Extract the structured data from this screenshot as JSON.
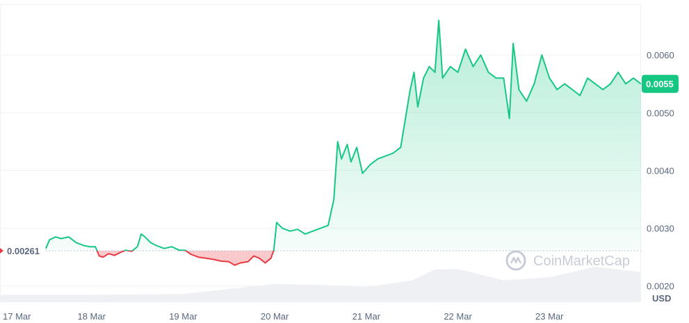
{
  "chart_data": {
    "type": "line",
    "unit": "USD",
    "y_range": [
      0.00172,
      0.00688
    ],
    "y_ticks": [
      "0.0020",
      "0.0030",
      "0.0040",
      "0.0050",
      "0.0060"
    ],
    "y_tick_values": [
      0.002,
      0.003,
      0.004,
      0.005,
      0.006
    ],
    "x_ticks": [
      "17 Mar",
      "18 Mar",
      "19 Mar",
      "20 Mar",
      "21 Mar",
      "22 Mar",
      "23 Mar"
    ],
    "x_range": [
      "2024-03-17 00:00",
      "2024-03-24 00:00"
    ],
    "baseline_value": 0.00261,
    "baseline_label": "0.00261",
    "current_value": 0.0055,
    "current_label": "0.0055",
    "colors": {
      "up": "#16c784",
      "down": "#ea3943",
      "grid": "#eff2f5",
      "text": "#58667e"
    },
    "watermark": "CoinMarketCap",
    "series": [
      {
        "points": [
          [
            "2024-03-17 12:00",
            0.00265
          ],
          [
            "2024-03-17 13:00",
            0.0028
          ],
          [
            "2024-03-17 14:30",
            0.00285
          ],
          [
            "2024-03-17 16:00",
            0.00282
          ],
          [
            "2024-03-17 18:00",
            0.00285
          ],
          [
            "2024-03-17 20:00",
            0.00275
          ],
          [
            "2024-03-17 22:00",
            0.0027
          ],
          [
            "2024-03-17 23:30",
            0.00268
          ],
          [
            "2024-03-18 01:00",
            0.00268
          ],
          [
            "2024-03-18 02:00",
            0.00252
          ],
          [
            "2024-03-18 03:00",
            0.0025
          ],
          [
            "2024-03-18 04:30",
            0.00256
          ],
          [
            "2024-03-18 06:00",
            0.00253
          ],
          [
            "2024-03-18 07:30",
            0.00258
          ],
          [
            "2024-03-18 09:00",
            0.00262
          ],
          [
            "2024-03-18 10:30",
            0.0026
          ],
          [
            "2024-03-18 12:00",
            0.00268
          ],
          [
            "2024-03-18 13:00",
            0.0029
          ],
          [
            "2024-03-18 14:00",
            0.00285
          ],
          [
            "2024-03-18 15:30",
            0.00275
          ],
          [
            "2024-03-18 17:00",
            0.0027
          ],
          [
            "2024-03-18 19:00",
            0.00265
          ],
          [
            "2024-03-18 21:00",
            0.00268
          ],
          [
            "2024-03-18 23:00",
            0.00262
          ],
          [
            "2024-03-19 00:30",
            0.00262
          ],
          [
            "2024-03-19 02:00",
            0.00255
          ],
          [
            "2024-03-19 04:00",
            0.0025
          ],
          [
            "2024-03-19 06:00",
            0.00248
          ],
          [
            "2024-03-19 08:00",
            0.00246
          ],
          [
            "2024-03-19 10:00",
            0.00243
          ],
          [
            "2024-03-19 12:00",
            0.00242
          ],
          [
            "2024-03-19 13:30",
            0.00236
          ],
          [
            "2024-03-19 15:00",
            0.0024
          ],
          [
            "2024-03-19 17:00",
            0.00242
          ],
          [
            "2024-03-19 18:30",
            0.00252
          ],
          [
            "2024-03-19 20:00",
            0.00248
          ],
          [
            "2024-03-19 21:30",
            0.0024
          ],
          [
            "2024-03-19 23:00",
            0.00248
          ],
          [
            "2024-03-19 23:45",
            0.00262
          ],
          [
            "2024-03-20 00:30",
            0.0031
          ],
          [
            "2024-03-20 02:00",
            0.003
          ],
          [
            "2024-03-20 04:00",
            0.00295
          ],
          [
            "2024-03-20 06:00",
            0.00298
          ],
          [
            "2024-03-20 08:00",
            0.0029
          ],
          [
            "2024-03-20 10:00",
            0.00295
          ],
          [
            "2024-03-20 12:00",
            0.003
          ],
          [
            "2024-03-20 14:00",
            0.00305
          ],
          [
            "2024-03-20 15:30",
            0.0035
          ],
          [
            "2024-03-20 16:30",
            0.0045
          ],
          [
            "2024-03-20 17:30",
            0.0042
          ],
          [
            "2024-03-20 19:00",
            0.00445
          ],
          [
            "2024-03-20 20:00",
            0.00415
          ],
          [
            "2024-03-20 21:30",
            0.0044
          ],
          [
            "2024-03-20 23:00",
            0.00395
          ],
          [
            "2024-03-21 01:00",
            0.0041
          ],
          [
            "2024-03-21 03:00",
            0.0042
          ],
          [
            "2024-03-21 05:00",
            0.00425
          ],
          [
            "2024-03-21 07:00",
            0.0043
          ],
          [
            "2024-03-21 09:00",
            0.0044
          ],
          [
            "2024-03-21 10:30",
            0.005
          ],
          [
            "2024-03-21 11:30",
            0.0054
          ],
          [
            "2024-03-21 12:30",
            0.0057
          ],
          [
            "2024-03-21 13:30",
            0.0051
          ],
          [
            "2024-03-21 15:00",
            0.0056
          ],
          [
            "2024-03-21 16:30",
            0.0058
          ],
          [
            "2024-03-21 18:00",
            0.0057
          ],
          [
            "2024-03-21 19:00",
            0.0066
          ],
          [
            "2024-03-21 20:00",
            0.0056
          ],
          [
            "2024-03-21 22:00",
            0.0058
          ],
          [
            "2024-03-22 00:00",
            0.0057
          ],
          [
            "2024-03-22 02:00",
            0.0061
          ],
          [
            "2024-03-22 04:00",
            0.0058
          ],
          [
            "2024-03-22 06:00",
            0.006
          ],
          [
            "2024-03-22 08:00",
            0.0057
          ],
          [
            "2024-03-22 10:00",
            0.0056
          ],
          [
            "2024-03-22 12:00",
            0.0056
          ],
          [
            "2024-03-22 13:30",
            0.0049
          ],
          [
            "2024-03-22 14:30",
            0.0062
          ],
          [
            "2024-03-22 16:00",
            0.0054
          ],
          [
            "2024-03-22 18:00",
            0.0052
          ],
          [
            "2024-03-22 20:00",
            0.0055
          ],
          [
            "2024-03-22 22:00",
            0.006
          ],
          [
            "2024-03-23 00:00",
            0.0056
          ],
          [
            "2024-03-23 02:00",
            0.0054
          ],
          [
            "2024-03-23 04:00",
            0.0055
          ],
          [
            "2024-03-23 06:00",
            0.0054
          ],
          [
            "2024-03-23 08:00",
            0.0053
          ],
          [
            "2024-03-23 10:00",
            0.0056
          ],
          [
            "2024-03-23 12:00",
            0.0055
          ],
          [
            "2024-03-23 14:00",
            0.0054
          ],
          [
            "2024-03-23 16:00",
            0.0055
          ],
          [
            "2024-03-23 18:00",
            0.0057
          ],
          [
            "2024-03-23 20:00",
            0.0055
          ],
          [
            "2024-03-23 22:00",
            0.0056
          ],
          [
            "2024-03-23 23:59",
            0.0055
          ]
        ]
      }
    ],
    "volume": {
      "x": [
        "2024-03-17 00:00",
        "2024-03-18 00:00",
        "2024-03-19 00:00",
        "2024-03-20 00:00",
        "2024-03-20 12:00",
        "2024-03-21 00:00",
        "2024-03-21 12:00",
        "2024-03-21 18:00",
        "2024-03-22 00:00",
        "2024-03-22 12:00",
        "2024-03-23 00:00",
        "2024-03-23 12:00",
        "2024-03-24 00:00"
      ],
      "values": [
        0.16,
        0.16,
        0.18,
        0.4,
        0.38,
        0.33,
        0.48,
        0.72,
        0.73,
        0.48,
        0.55,
        0.78,
        0.66
      ]
    }
  }
}
